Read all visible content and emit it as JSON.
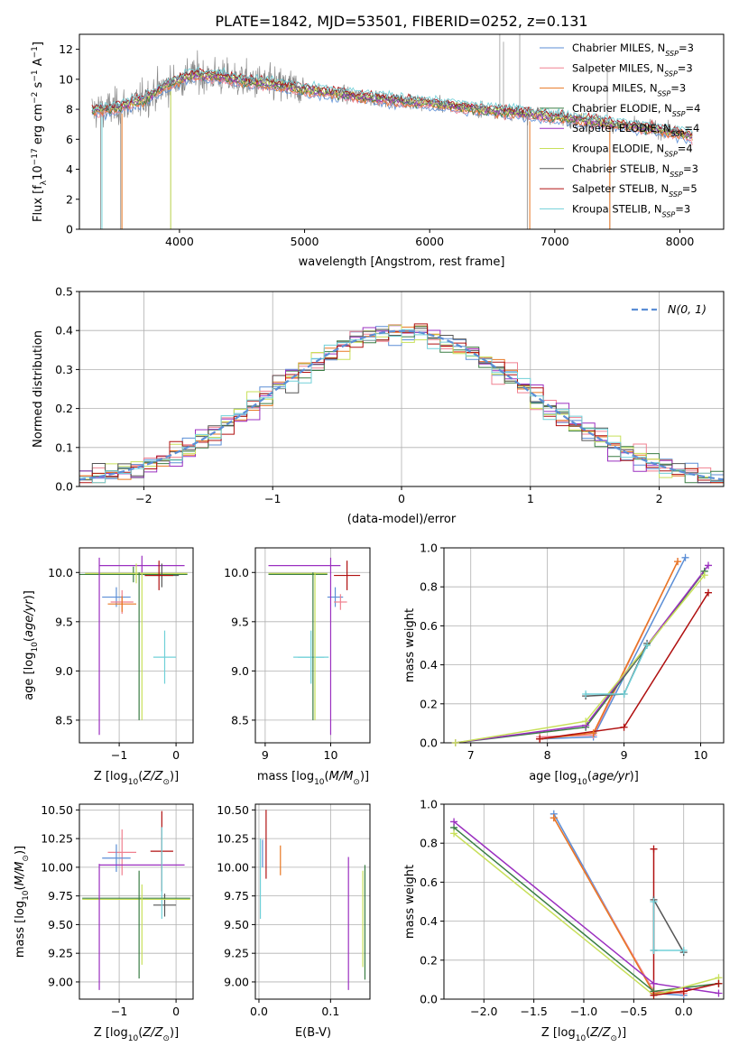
{
  "figure_title": "PLATE=1842, MJD=53501, FIBERID=0252, z=0.131",
  "colors": {
    "chabrier_miles": "#5b8ed6",
    "salpeter_miles": "#f08090",
    "kroupa_miles": "#e87722",
    "chabrier_elodie": "#3a7d44",
    "salpeter_elodie": "#9b30c0",
    "kroupa_elodie": "#c8e05a",
    "chabrier_stelib": "#555555",
    "salpeter_stelib": "#b01010",
    "kroupa_stelib": "#70d0d8",
    "data_gray": "#888888",
    "normal": "#5b8ed6"
  },
  "chart_data": [
    {
      "id": "spectrum",
      "type": "line",
      "xlabel": "wavelength [Angstrom, rest frame]",
      "ylabel": "Flux [f_λ 10^-17 erg cm^-2 s^-1 A^-1]",
      "xlim": [
        3200,
        8350
      ],
      "ylim": [
        0,
        13
      ],
      "xticks": [
        4000,
        5000,
        6000,
        7000,
        8000
      ],
      "yticks": [
        0,
        2,
        4,
        6,
        8,
        10,
        12
      ],
      "legend_position": "top-right",
      "legend": [
        {
          "key": "chabrier_miles",
          "name": "Chabrier MILES",
          "n": "3"
        },
        {
          "key": "salpeter_miles",
          "name": "Salpeter MILES",
          "n": "3"
        },
        {
          "key": "kroupa_miles",
          "name": "Kroupa MILES",
          "n": "3"
        },
        {
          "key": "chabrier_elodie",
          "name": "Chabrier ELODIE",
          "n": "4"
        },
        {
          "key": "salpeter_elodie",
          "name": "Salpeter ELODIE",
          "n": "4"
        },
        {
          "key": "kroupa_elodie",
          "name": "Kroupa ELODIE",
          "n": "4"
        },
        {
          "key": "chabrier_stelib",
          "name": "Chabrier STELIB",
          "n": "3"
        },
        {
          "key": "salpeter_stelib",
          "name": "Salpeter STELIB",
          "n": "5"
        },
        {
          "key": "kroupa_stelib",
          "name": "Kroupa STELIB",
          "n": "3"
        }
      ],
      "continuum": [
        [
          3300,
          7.9
        ],
        [
          3500,
          8.1
        ],
        [
          3700,
          8.6
        ],
        [
          3900,
          9.6
        ],
        [
          4100,
          10.3
        ],
        [
          4300,
          10.2
        ],
        [
          4500,
          9.9
        ],
        [
          4800,
          9.6
        ],
        [
          5000,
          9.3
        ],
        [
          5300,
          9.0
        ],
        [
          5600,
          8.7
        ],
        [
          6000,
          8.4
        ],
        [
          6400,
          8.0
        ],
        [
          6800,
          7.7
        ],
        [
          7200,
          7.3
        ],
        [
          7600,
          6.9
        ],
        [
          8000,
          6.4
        ],
        [
          8100,
          6.2
        ]
      ]
    },
    {
      "id": "residuals",
      "type": "line",
      "xlabel": "(data-model)/error",
      "ylabel": "Normed distribution",
      "xlim": [
        -2.5,
        2.5
      ],
      "ylim": [
        0,
        0.5
      ],
      "xticks": [
        -2,
        -1,
        0,
        1,
        2
      ],
      "yticks": [
        0.0,
        0.1,
        0.2,
        0.3,
        0.4,
        0.5
      ],
      "legend_position": "top-right",
      "legend_label": "N(0, 1)"
    },
    {
      "id": "age_vs_Z",
      "type": "scatter",
      "xlabel": "Z [log10(Z/Z⊙)]",
      "ylabel": "age [log10(age/yr)]",
      "xlim": [
        -1.7,
        0.3
      ],
      "ylim": [
        8.27,
        10.25
      ],
      "xticks": [
        -1,
        0
      ],
      "yticks": [
        8.5,
        9.0,
        9.5,
        10.0
      ],
      "points": [
        {
          "key": "chabrier_miles",
          "x": -1.05,
          "xerr": 0.25,
          "y": 9.75,
          "yerr": 0.1
        },
        {
          "key": "salpeter_miles",
          "x": -0.95,
          "xerr": 0.2,
          "y": 9.7,
          "yerr": 0.12
        },
        {
          "key": "kroupa_miles",
          "x": -0.95,
          "xerr": 0.25,
          "y": 9.68,
          "yerr": 0.08
        },
        {
          "key": "chabrier_elodie",
          "x": -0.75,
          "xerr": 0.95,
          "y": 9.98,
          "yerr": 0.08
        },
        {
          "key": "salpeter_elodie",
          "x": -0.6,
          "xerr": 0.75,
          "y": 10.07,
          "yerr": 0.1
        },
        {
          "key": "kroupa_elodie",
          "x": -0.7,
          "xerr": 0.9,
          "y": 9.99,
          "yerr": 0.1
        },
        {
          "key": "chabrier_stelib",
          "x": -0.25,
          "xerr": 0.3,
          "y": 9.97,
          "yerr": 0.12
        },
        {
          "key": "salpeter_stelib",
          "x": -0.3,
          "xerr": 0.25,
          "y": 9.97,
          "yerr": 0.15
        },
        {
          "key": "kroupa_stelib",
          "x": -0.2,
          "xerr": 0.2,
          "y": 9.14,
          "yerr": 0.27
        },
        {
          "key": "salpeter_elodie",
          "x": -1.35,
          "xerr": 0.0,
          "y": 9.25,
          "yerr": 0.9
        },
        {
          "key": "kroupa_elodie",
          "x": -0.6,
          "xerr": 0.0,
          "y": 9.25,
          "yerr": 0.75
        },
        {
          "key": "chabrier_elodie",
          "x": -0.65,
          "xerr": 0.0,
          "y": 9.25,
          "yerr": 0.75
        }
      ]
    },
    {
      "id": "age_vs_mass",
      "type": "scatter",
      "xlabel": "mass [log10(M/M⊙)]",
      "ylabel": "",
      "xlim": [
        8.85,
        10.6
      ],
      "ylim": [
        8.27,
        10.25
      ],
      "xticks": [
        9,
        10
      ],
      "yticks": [
        8.5,
        9.0,
        9.5,
        10.0
      ],
      "points": [
        {
          "key": "salpeter_elodie",
          "x": 9.6,
          "xerr": 0.55,
          "y": 10.07,
          "yerr": 0.0
        },
        {
          "key": "kroupa_elodie",
          "x": 9.5,
          "xerr": 0.45,
          "y": 9.99,
          "yerr": 0.0
        },
        {
          "key": "chabrier_elodie",
          "x": 9.5,
          "xerr": 0.45,
          "y": 9.98,
          "yerr": 0.0
        },
        {
          "key": "salpeter_stelib",
          "x": 10.25,
          "xerr": 0.2,
          "y": 9.97,
          "yerr": 0.15
        },
        {
          "key": "chabrier_miles",
          "x": 10.07,
          "xerr": 0.12,
          "y": 9.75,
          "yerr": 0.1
        },
        {
          "key": "salpeter_miles",
          "x": 10.15,
          "xerr": 0.1,
          "y": 9.7,
          "yerr": 0.08
        },
        {
          "key": "kroupa_stelib",
          "x": 9.7,
          "xerr": 0.2,
          "y": 9.14,
          "yerr": 0.27
        },
        {
          "key": "kroupa_stelib",
          "x": 9.7,
          "xerr": 0.27,
          "y": 9.14,
          "yerr": 0.0
        },
        {
          "key": "chabrier_elodie",
          "x": 9.73,
          "xerr": 0.0,
          "y": 9.25,
          "yerr": 0.75
        },
        {
          "key": "kroupa_elodie",
          "x": 9.76,
          "xerr": 0.0,
          "y": 9.25,
          "yerr": 0.75
        },
        {
          "key": "salpeter_elodie",
          "x": 10.0,
          "xerr": 0.0,
          "y": 9.25,
          "yerr": 0.9
        }
      ]
    },
    {
      "id": "mass_weight_vs_age",
      "type": "line",
      "xlabel": "age [log10(age/yr)]",
      "ylabel": "mass weight",
      "xlim": [
        6.65,
        10.3
      ],
      "ylim": [
        0,
        1.0
      ],
      "xticks": [
        7,
        8,
        9,
        10
      ],
      "yticks": [
        0.0,
        0.2,
        0.4,
        0.6,
        0.8,
        1.0
      ],
      "series": [
        {
          "key": "chabrier_miles",
          "x": [
            7.9,
            8.6,
            9.8
          ],
          "y": [
            0.02,
            0.03,
            0.95
          ]
        },
        {
          "key": "salpeter_miles",
          "x": [
            7.9,
            8.6,
            9.7
          ],
          "y": [
            0.03,
            0.04,
            0.93
          ]
        },
        {
          "key": "kroupa_miles",
          "x": [
            7.9,
            8.6,
            9.7
          ],
          "y": [
            0.02,
            0.05,
            0.93
          ]
        },
        {
          "key": "chabrier_elodie",
          "x": [
            6.8,
            8.5,
            10.05
          ],
          "y": [
            0.0,
            0.08,
            0.88
          ]
        },
        {
          "key": "salpeter_elodie",
          "x": [
            6.8,
            8.5,
            10.1
          ],
          "y": [
            0.0,
            0.09,
            0.91
          ]
        },
        {
          "key": "kroupa_elodie",
          "x": [
            6.8,
            8.5,
            10.05
          ],
          "y": [
            0.0,
            0.11,
            0.86
          ]
        },
        {
          "key": "chabrier_stelib",
          "x": [
            8.5,
            9.0,
            9.3
          ],
          "y": [
            0.24,
            0.25,
            0.51
          ]
        },
        {
          "key": "salpeter_stelib",
          "x": [
            7.9,
            9.0,
            10.1
          ],
          "y": [
            0.02,
            0.08,
            0.77
          ]
        },
        {
          "key": "kroupa_stelib",
          "x": [
            8.5,
            9.0,
            9.3
          ],
          "y": [
            0.25,
            0.25,
            0.5
          ]
        }
      ]
    },
    {
      "id": "mass_vs_Z",
      "type": "scatter",
      "xlabel": "Z [log10(Z/Z⊙)]",
      "ylabel": "mass [log10(M/M⊙)]",
      "xlim": [
        -1.7,
        0.3
      ],
      "ylim": [
        8.85,
        10.55
      ],
      "xticks": [
        -1,
        0
      ],
      "yticks": [
        9.0,
        9.25,
        9.5,
        9.75,
        10.0,
        10.25,
        10.5
      ],
      "points": [
        {
          "key": "salpeter_miles",
          "x": -0.95,
          "xerr": 0.25,
          "y": 10.13,
          "yerr": 0.2
        },
        {
          "key": "chabrier_miles",
          "x": -1.05,
          "xerr": 0.25,
          "y": 10.08,
          "yerr": 0.12
        },
        {
          "key": "salpeter_elodie",
          "x": -0.6,
          "xerr": 0.75,
          "y": 10.02,
          "yerr": 0.0
        },
        {
          "key": "salpeter_stelib",
          "x": -0.25,
          "xerr": 0.2,
          "y": 10.14,
          "yerr": 0.35
        },
        {
          "key": "chabrier_stelib",
          "x": -0.2,
          "xerr": 0.2,
          "y": 9.67,
          "yerr": 0.1
        },
        {
          "key": "kroupa_stelib",
          "x": -0.25,
          "xerr": 0.0,
          "y": 9.95,
          "yerr": 0.4
        },
        {
          "key": "chabrier_elodie",
          "x": -0.7,
          "xerr": 0.95,
          "y": 9.73,
          "yerr": 0.0
        },
        {
          "key": "kroupa_elodie",
          "x": -0.7,
          "xerr": 0.95,
          "y": 9.72,
          "yerr": 0.0
        },
        {
          "key": "salpeter_elodie",
          "x": -1.35,
          "xerr": 0.0,
          "y": 9.48,
          "yerr": 0.55
        },
        {
          "key": "chabrier_elodie",
          "x": -0.65,
          "xerr": 0.0,
          "y": 9.5,
          "yerr": 0.47
        },
        {
          "key": "kroupa_elodie",
          "x": -0.6,
          "xerr": 0.0,
          "y": 9.5,
          "yerr": 0.35
        }
      ]
    },
    {
      "id": "mass_vs_ebv",
      "type": "scatter",
      "xlabel": "E(B-V)",
      "ylabel": "",
      "xlim": [
        -0.005,
        0.155
      ],
      "ylim": [
        8.85,
        10.55
      ],
      "xticks": [
        0.0,
        0.1
      ],
      "yticks": [
        9.0,
        9.25,
        9.5,
        9.75,
        10.0,
        10.25,
        10.5
      ],
      "points": [
        {
          "key": "kroupa_stelib",
          "x": 0.002,
          "xerr": 0.0,
          "y": 9.9,
          "yerr": 0.35
        },
        {
          "key": "chabrier_miles",
          "x": 0.005,
          "xerr": 0.0,
          "y": 10.12,
          "yerr": 0.12
        },
        {
          "key": "salpeter_stelib",
          "x": 0.01,
          "xerr": 0.0,
          "y": 10.2,
          "yerr": 0.3
        },
        {
          "key": "kroupa_miles",
          "x": 0.03,
          "xerr": 0.0,
          "y": 10.06,
          "yerr": 0.13
        },
        {
          "key": "salpeter_elodie",
          "x": 0.125,
          "xerr": 0.0,
          "y": 9.51,
          "yerr": 0.58
        },
        {
          "key": "kroupa_elodie",
          "x": 0.145,
          "xerr": 0.0,
          "y": 9.55,
          "yerr": 0.42
        },
        {
          "key": "chabrier_elodie",
          "x": 0.148,
          "xerr": 0.0,
          "y": 9.52,
          "yerr": 0.5
        }
      ]
    },
    {
      "id": "mass_weight_vs_Z",
      "type": "line",
      "xlabel": "Z [log10(Z/Z⊙)]",
      "ylabel": "mass weight",
      "xlim": [
        -2.4,
        0.4
      ],
      "ylim": [
        0,
        1.0
      ],
      "xticks": [
        -2.0,
        -1.5,
        -1.0,
        -0.5,
        0.0
      ],
      "yticks": [
        0.0,
        0.2,
        0.4,
        0.6,
        0.8,
        1.0
      ],
      "series": [
        {
          "key": "chabrier_miles",
          "x": [
            -1.3,
            -0.3,
            0.0
          ],
          "y": [
            0.95,
            0.03,
            0.02
          ]
        },
        {
          "key": "salpeter_miles",
          "x": [
            -1.3,
            -0.3,
            0.0
          ],
          "y": [
            0.93,
            0.04,
            0.03
          ]
        },
        {
          "key": "kroupa_miles",
          "x": [
            -1.3,
            -0.3,
            0.0
          ],
          "y": [
            0.93,
            0.03,
            0.04
          ]
        },
        {
          "key": "chabrier_elodie",
          "x": [
            -2.3,
            -0.3,
            0.35
          ],
          "y": [
            0.88,
            0.04,
            0.08
          ]
        },
        {
          "key": "salpeter_elodie",
          "x": [
            -2.3,
            -0.3,
            0.35
          ],
          "y": [
            0.91,
            0.08,
            0.03
          ]
        },
        {
          "key": "kroupa_elodie",
          "x": [
            -2.3,
            -0.3,
            0.35
          ],
          "y": [
            0.85,
            0.02,
            0.11
          ]
        },
        {
          "key": "chabrier_stelib",
          "x": [
            -0.3,
            -0.3,
            0.0
          ],
          "y": [
            0.25,
            0.51,
            0.24
          ]
        },
        {
          "key": "salpeter_stelib",
          "x": [
            -0.3,
            -0.3,
            0.0,
            0.35
          ],
          "y": [
            0.77,
            0.02,
            0.04,
            0.08
          ]
        },
        {
          "key": "kroupa_stelib",
          "x": [
            -0.3,
            -0.3,
            0.0
          ],
          "y": [
            0.5,
            0.25,
            0.25
          ]
        }
      ]
    }
  ]
}
